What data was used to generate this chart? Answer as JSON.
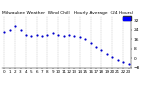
{
  "title": "Milwaukee Weather  Wind Chill   Hourly Average  (24 Hours)",
  "hours": [
    0,
    1,
    2,
    3,
    4,
    5,
    6,
    7,
    8,
    9,
    10,
    11,
    12,
    13,
    14,
    15,
    16,
    17,
    18,
    19,
    20,
    21,
    22,
    23
  ],
  "wind_chill": [
    22,
    24,
    27,
    24,
    20,
    19,
    20,
    19,
    20,
    21,
    20,
    19,
    20,
    19,
    18,
    16,
    13,
    10,
    7,
    4,
    1,
    -1,
    -3,
    -5
  ],
  "dot_color": "#0000cc",
  "bg_color": "#ffffff",
  "grid_color": "#aaaaaa",
  "legend_color": "#0000ff",
  "ylim_min": -8,
  "ylim_max": 36,
  "ytick_values": [
    32,
    24,
    16,
    8,
    0,
    -8
  ],
  "ylabel_fontsize": 3.2,
  "xlabel_fontsize": 3.0,
  "title_fontsize": 3.2,
  "dot_size": 2.5,
  "figwidth": 1.6,
  "figheight": 0.87,
  "dpi": 100
}
